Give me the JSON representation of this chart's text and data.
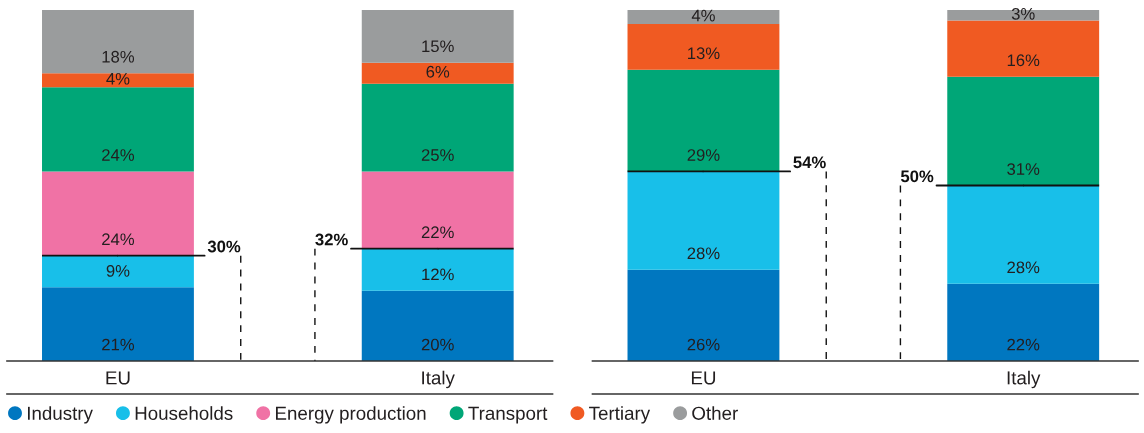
{
  "chart_data": [
    {
      "type": "bar",
      "stacked": true,
      "categories": [
        "EU",
        "Italy"
      ],
      "ylim": [
        0,
        100
      ],
      "tick_labels": "x",
      "legend": "bottom",
      "series": [
        {
          "name": "Industry",
          "color": "#0077c0",
          "values": [
            21,
            20
          ],
          "value_labels": [
            "21%",
            "20%"
          ]
        },
        {
          "name": "Households",
          "color": "#18bfe9",
          "values": [
            9,
            12
          ],
          "value_labels": [
            "9%",
            "12%"
          ]
        },
        {
          "name": "Energy production",
          "color": "#f072a5",
          "values": [
            24,
            22
          ],
          "value_labels": [
            "24%",
            "22%"
          ]
        },
        {
          "name": "Transport",
          "color": "#00a677",
          "values": [
            24,
            25
          ],
          "value_labels": [
            "24%",
            "25%"
          ]
        },
        {
          "name": "Tertiary",
          "color": "#f05a22",
          "values": [
            4,
            6
          ],
          "value_labels": [
            "4%",
            "6%"
          ]
        },
        {
          "name": "Other",
          "color": "#9a9c9d",
          "values": [
            18,
            15
          ],
          "value_labels": [
            "18%",
            "15%"
          ]
        }
      ],
      "annotations": [
        {
          "text": "30%",
          "x": "EU",
          "y": 30
        },
        {
          "text": "32%",
          "x": "Italy",
          "y": 32
        }
      ]
    },
    {
      "type": "bar",
      "stacked": true,
      "categories": [
        "EU",
        "Italy"
      ],
      "ylim": [
        0,
        100
      ],
      "tick_labels": "x",
      "series": [
        {
          "name": "Industry",
          "color": "#0077c0",
          "values": [
            26,
            22
          ],
          "value_labels": [
            "26%",
            "22%"
          ]
        },
        {
          "name": "Households",
          "color": "#18bfe9",
          "values": [
            28,
            28
          ],
          "value_labels": [
            "28%",
            "28%"
          ]
        },
        {
          "name": "Transport",
          "color": "#00a677",
          "values": [
            29,
            31
          ],
          "value_labels": [
            "29%",
            "31%"
          ]
        },
        {
          "name": "Tertiary",
          "color": "#f05a22",
          "values": [
            13,
            16
          ],
          "value_labels": [
            "13%",
            "16%"
          ]
        },
        {
          "name": "Other",
          "color": "#9a9c9d",
          "values": [
            4,
            3
          ],
          "value_labels": [
            "4%",
            "3%"
          ]
        }
      ],
      "annotations": [
        {
          "text": "54%",
          "x": "EU",
          "y": 54
        },
        {
          "text": "50%",
          "x": "Italy",
          "y": 50
        }
      ]
    }
  ]
}
